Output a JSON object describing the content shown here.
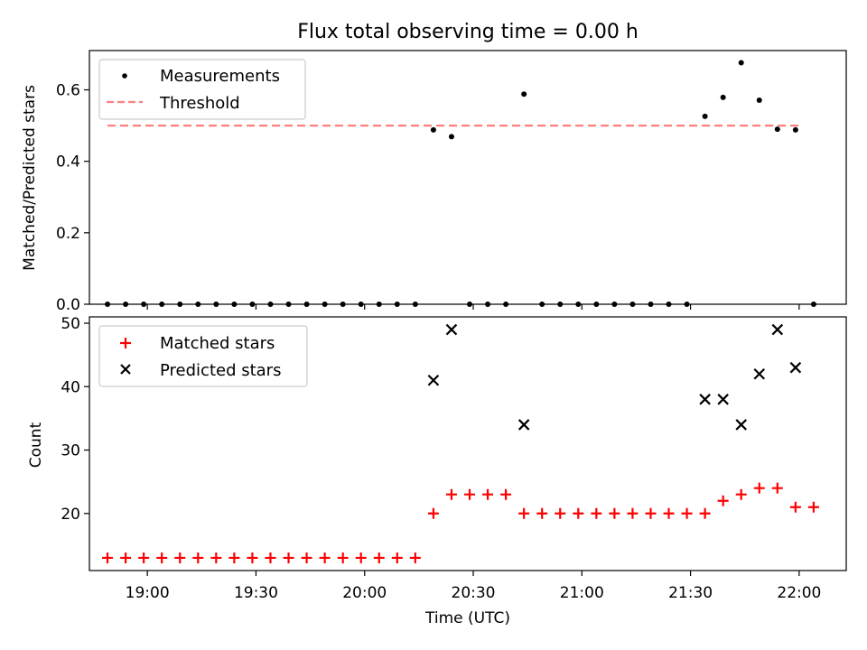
{
  "chart_data": [
    {
      "type": "scatter",
      "title": "Flux total observing time = 0.00 h",
      "xlabel": "",
      "ylabel": "Matched/Predicted stars",
      "x_unit": "time (UTC)",
      "xlim": [
        "18:44",
        "22:13"
      ],
      "ylim": [
        0,
        0.71
      ],
      "yticks": [
        "0.0",
        "0.2",
        "0.4",
        "0.6"
      ],
      "grid": false,
      "legend_position": "top-left",
      "series": [
        {
          "name": "Measurements",
          "marker": "dot",
          "color": "#000000",
          "points": [
            {
              "x": "18:49",
              "y": 0
            },
            {
              "x": "18:54",
              "y": 0
            },
            {
              "x": "18:59",
              "y": 0
            },
            {
              "x": "19:04",
              "y": 0
            },
            {
              "x": "19:09",
              "y": 0
            },
            {
              "x": "19:14",
              "y": 0
            },
            {
              "x": "19:19",
              "y": 0
            },
            {
              "x": "19:24",
              "y": 0
            },
            {
              "x": "19:29",
              "y": 0
            },
            {
              "x": "19:34",
              "y": 0
            },
            {
              "x": "19:39",
              "y": 0
            },
            {
              "x": "19:44",
              "y": 0
            },
            {
              "x": "19:49",
              "y": 0
            },
            {
              "x": "19:54",
              "y": 0
            },
            {
              "x": "19:59",
              "y": 0
            },
            {
              "x": "20:04",
              "y": 0
            },
            {
              "x": "20:09",
              "y": 0
            },
            {
              "x": "20:14",
              "y": 0
            },
            {
              "x": "20:19",
              "y": 0.488
            },
            {
              "x": "20:24",
              "y": 0.469
            },
            {
              "x": "20:29",
              "y": 0
            },
            {
              "x": "20:34",
              "y": 0
            },
            {
              "x": "20:39",
              "y": 0
            },
            {
              "x": "20:44",
              "y": 0.588
            },
            {
              "x": "20:49",
              "y": 0
            },
            {
              "x": "20:54",
              "y": 0
            },
            {
              "x": "20:59",
              "y": 0
            },
            {
              "x": "21:04",
              "y": 0
            },
            {
              "x": "21:09",
              "y": 0
            },
            {
              "x": "21:14",
              "y": 0
            },
            {
              "x": "21:19",
              "y": 0
            },
            {
              "x": "21:24",
              "y": 0
            },
            {
              "x": "21:29",
              "y": 0
            },
            {
              "x": "21:34",
              "y": 0.526
            },
            {
              "x": "21:39",
              "y": 0.579
            },
            {
              "x": "21:44",
              "y": 0.676
            },
            {
              "x": "21:49",
              "y": 0.571
            },
            {
              "x": "21:54",
              "y": 0.49
            },
            {
              "x": "21:59",
              "y": 0.488
            },
            {
              "x": "22:04",
              "y": 0
            }
          ]
        },
        {
          "name": "Threshold",
          "marker": "dashed-line",
          "color": "#ff7f7f",
          "points": [
            {
              "x": "18:49",
              "y": 0.5
            },
            {
              "x": "22:01",
              "y": 0.5
            }
          ]
        }
      ]
    },
    {
      "type": "scatter",
      "title": "",
      "xlabel": "Time (UTC)",
      "ylabel": "Count",
      "x_unit": "time (UTC)",
      "xlim": [
        "18:44",
        "22:13"
      ],
      "ylim": [
        11,
        51
      ],
      "yticks": [
        "20",
        "30",
        "40",
        "50"
      ],
      "xticks": [
        "19:00",
        "19:30",
        "20:00",
        "20:30",
        "21:00",
        "21:30",
        "22:00"
      ],
      "grid": false,
      "legend_position": "top-left",
      "series": [
        {
          "name": "Matched stars",
          "marker": "plus",
          "color": "#ff0000",
          "points": [
            {
              "x": "18:49",
              "y": 13
            },
            {
              "x": "18:54",
              "y": 13
            },
            {
              "x": "18:59",
              "y": 13
            },
            {
              "x": "19:04",
              "y": 13
            },
            {
              "x": "19:09",
              "y": 13
            },
            {
              "x": "19:14",
              "y": 13
            },
            {
              "x": "19:19",
              "y": 13
            },
            {
              "x": "19:24",
              "y": 13
            },
            {
              "x": "19:29",
              "y": 13
            },
            {
              "x": "19:34",
              "y": 13
            },
            {
              "x": "19:39",
              "y": 13
            },
            {
              "x": "19:44",
              "y": 13
            },
            {
              "x": "19:49",
              "y": 13
            },
            {
              "x": "19:54",
              "y": 13
            },
            {
              "x": "19:59",
              "y": 13
            },
            {
              "x": "20:04",
              "y": 13
            },
            {
              "x": "20:09",
              "y": 13
            },
            {
              "x": "20:14",
              "y": 13
            },
            {
              "x": "20:19",
              "y": 20
            },
            {
              "x": "20:24",
              "y": 23
            },
            {
              "x": "20:29",
              "y": 23
            },
            {
              "x": "20:34",
              "y": 23
            },
            {
              "x": "20:39",
              "y": 23
            },
            {
              "x": "20:44",
              "y": 20
            },
            {
              "x": "20:49",
              "y": 20
            },
            {
              "x": "20:54",
              "y": 20
            },
            {
              "x": "20:59",
              "y": 20
            },
            {
              "x": "21:04",
              "y": 20
            },
            {
              "x": "21:09",
              "y": 20
            },
            {
              "x": "21:14",
              "y": 20
            },
            {
              "x": "21:19",
              "y": 20
            },
            {
              "x": "21:24",
              "y": 20
            },
            {
              "x": "21:29",
              "y": 20
            },
            {
              "x": "21:34",
              "y": 20
            },
            {
              "x": "21:39",
              "y": 22
            },
            {
              "x": "21:44",
              "y": 23
            },
            {
              "x": "21:49",
              "y": 24
            },
            {
              "x": "21:54",
              "y": 24
            },
            {
              "x": "21:59",
              "y": 21
            },
            {
              "x": "22:04",
              "y": 21
            }
          ]
        },
        {
          "name": "Predicted stars",
          "marker": "x",
          "color": "#000000",
          "points": [
            {
              "x": "20:19",
              "y": 41
            },
            {
              "x": "20:24",
              "y": 49
            },
            {
              "x": "20:44",
              "y": 34
            },
            {
              "x": "21:34",
              "y": 38
            },
            {
              "x": "21:39",
              "y": 38
            },
            {
              "x": "21:44",
              "y": 34
            },
            {
              "x": "21:49",
              "y": 42
            },
            {
              "x": "21:54",
              "y": 49
            },
            {
              "x": "21:59",
              "y": 43
            }
          ]
        }
      ]
    }
  ]
}
